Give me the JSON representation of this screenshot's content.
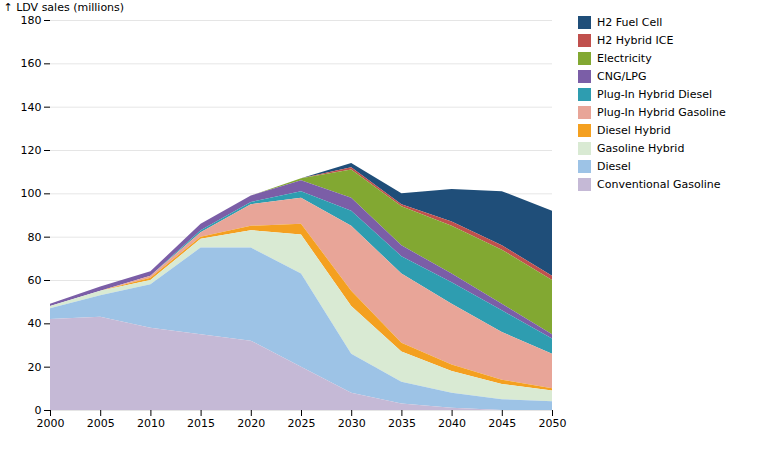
{
  "chart_data": {
    "type": "area",
    "stacked": true,
    "ylabel": "LDV sales (millions)",
    "x": [
      2000,
      2005,
      2010,
      2015,
      2020,
      2025,
      2030,
      2035,
      2040,
      2045,
      2050
    ],
    "series": [
      {
        "name": "H2 Fuel Cell",
        "color": "#1f4e79",
        "values": [
          0,
          0,
          0,
          0,
          0,
          0,
          2,
          5,
          15,
          25,
          30
        ]
      },
      {
        "name": "H2 Hybrid ICE",
        "color": "#c0504d",
        "values": [
          0,
          0,
          0,
          0,
          0,
          0,
          1,
          1,
          2,
          2,
          2
        ]
      },
      {
        "name": "Electricity",
        "color": "#82a832",
        "values": [
          0,
          0,
          0,
          0,
          0,
          1,
          13,
          18,
          22,
          25,
          25
        ]
      },
      {
        "name": "CNG/LPG",
        "color": "#7b5ea7",
        "values": [
          1,
          2,
          2,
          3,
          3,
          5,
          6,
          5,
          4,
          3,
          2
        ]
      },
      {
        "name": "Plug-In Hybrid Diesel",
        "color": "#2e9db0",
        "values": [
          0,
          0,
          0,
          1,
          1,
          3,
          7,
          8,
          10,
          10,
          7
        ]
      },
      {
        "name": "Plug-In Hybrid Gasoline",
        "color": "#e8a598",
        "values": [
          0,
          0,
          1,
          2,
          10,
          12,
          30,
          32,
          28,
          22,
          16
        ]
      },
      {
        "name": "Diesel Hybrid",
        "color": "#f4a020",
        "values": [
          0,
          0,
          1,
          1,
          2,
          5,
          7,
          4,
          3,
          2,
          1
        ]
      },
      {
        "name": "Gasoline Hybrid",
        "color": "#d9ead3",
        "values": [
          1,
          2,
          2,
          4,
          8,
          18,
          22,
          14,
          10,
          7,
          5
        ]
      },
      {
        "name": "Diesel",
        "color": "#9dc3e6",
        "values": [
          5,
          10,
          20,
          40,
          43,
          43,
          18,
          10,
          7,
          5,
          4
        ]
      },
      {
        "name": "Conventional Gasoline",
        "color": "#c5b9d6",
        "values": [
          42,
          43,
          38,
          35,
          32,
          20,
          8,
          3,
          1,
          0,
          0
        ]
      }
    ],
    "xlim": [
      2000,
      2050
    ],
    "xticks": [
      2000,
      2005,
      2010,
      2015,
      2020,
      2025,
      2030,
      2035,
      2040,
      2045,
      2050
    ],
    "ylim": [
      0,
      180
    ],
    "yticks": [
      0,
      20,
      40,
      60,
      80,
      100,
      120,
      140,
      160,
      180
    ],
    "grid": true,
    "legend": "right"
  }
}
